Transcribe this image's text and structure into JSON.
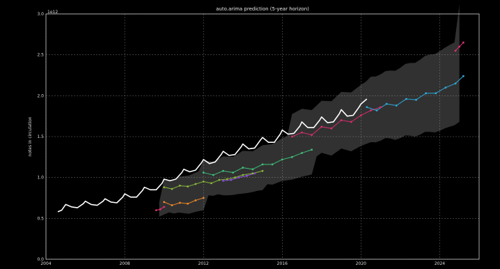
{
  "chart_data": {
    "type": "line",
    "title": "auto.arima prediction (5-year horizon)",
    "xlabel": "",
    "ylabel": "notes in circulation",
    "y_offset_text": "1e12",
    "xlim": [
      2004,
      2026
    ],
    "ylim": [
      0.0,
      3.0
    ],
    "x_ticks": [
      2004,
      2008,
      2012,
      2016,
      2020,
      2024
    ],
    "x_tick_labels": [
      "2004",
      "2008",
      "2012",
      "2016",
      "2020",
      "2024"
    ],
    "y_ticks": [
      0.0,
      0.5,
      1.0,
      1.5,
      2.0,
      2.5,
      3.0
    ],
    "y_tick_labels": [
      "0.0",
      "0.5",
      "1.0",
      "1.5",
      "2.0",
      "2.5",
      "3.0"
    ],
    "grid": true,
    "background": "#000000",
    "series": [
      {
        "role": "observed",
        "color": "#ffffff",
        "x": [
          2004.6,
          2004.8,
          2005.0,
          2005.3,
          2005.6,
          2005.9,
          2006.0,
          2006.3,
          2006.6,
          2006.9,
          2007.0,
          2007.3,
          2007.6,
          2007.9,
          2008.0,
          2008.3,
          2008.6,
          2008.9,
          2009.0,
          2009.3,
          2009.6,
          2009.9,
          2010.0,
          2010.3,
          2010.6,
          2010.9,
          2011.0,
          2011.3,
          2011.6,
          2011.9,
          2012.0,
          2012.3,
          2012.6,
          2012.9,
          2013.0,
          2013.3,
          2013.6,
          2013.9,
          2014.0,
          2014.3,
          2014.6,
          2014.9,
          2015.0,
          2015.3,
          2015.6,
          2015.9,
          2016.0,
          2016.3,
          2016.6,
          2016.9,
          2017.0,
          2017.3,
          2017.6,
          2017.9,
          2018.0,
          2018.3,
          2018.6,
          2018.9,
          2019.0,
          2019.3,
          2019.6,
          2019.9,
          2020.0,
          2020.3
        ],
        "y": [
          0.58,
          0.6,
          0.67,
          0.64,
          0.63,
          0.68,
          0.71,
          0.67,
          0.66,
          0.71,
          0.74,
          0.7,
          0.69,
          0.76,
          0.8,
          0.76,
          0.76,
          0.84,
          0.88,
          0.85,
          0.85,
          0.93,
          0.98,
          0.96,
          0.98,
          1.06,
          1.1,
          1.07,
          1.09,
          1.18,
          1.22,
          1.17,
          1.19,
          1.28,
          1.32,
          1.27,
          1.28,
          1.37,
          1.41,
          1.35,
          1.36,
          1.46,
          1.49,
          1.43,
          1.43,
          1.53,
          1.58,
          1.53,
          1.54,
          1.63,
          1.68,
          1.61,
          1.61,
          1.7,
          1.74,
          1.67,
          1.68,
          1.78,
          1.83,
          1.75,
          1.76,
          1.86,
          1.9,
          1.96
        ]
      },
      {
        "role": "forecast",
        "color": "#8ab83a",
        "x": [
          2010.0,
          2010.4,
          2010.8,
          2011.2,
          2011.6,
          2012.0,
          2012.4,
          2012.8,
          2013.2,
          2013.6,
          2014.0,
          2014.5,
          2015.0
        ],
        "y": [
          0.88,
          0.86,
          0.9,
          0.89,
          0.92,
          0.95,
          0.93,
          0.97,
          0.98,
          1.0,
          1.03,
          1.05,
          1.08
        ]
      },
      {
        "role": "forecast",
        "color": "#f08a2a",
        "x": [
          2010.0,
          2010.4,
          2010.8,
          2011.2,
          2011.6,
          2012.0
        ],
        "y": [
          0.7,
          0.66,
          0.69,
          0.68,
          0.72,
          0.75
        ]
      },
      {
        "role": "forecast",
        "color": "#e0306a",
        "x": [
          2009.6,
          2009.8,
          2010.0
        ],
        "y": [
          0.6,
          0.61,
          0.64
        ]
      },
      {
        "role": "forecast",
        "color": "#3fbf7a",
        "x": [
          2012.0,
          2012.5,
          2013.0,
          2013.5,
          2014.0,
          2014.5,
          2015.0,
          2015.5,
          2016.0,
          2016.5,
          2017.0,
          2017.5
        ],
        "y": [
          1.06,
          1.03,
          1.08,
          1.06,
          1.12,
          1.1,
          1.16,
          1.16,
          1.22,
          1.25,
          1.3,
          1.34
        ]
      },
      {
        "role": "forecast",
        "color": "#8b4fd8",
        "x": [
          2013.0,
          2013.4,
          2013.8,
          2014.2,
          2014.6
        ],
        "y": [
          0.96,
          0.97,
          1.0,
          1.02,
          1.05
        ]
      },
      {
        "role": "forecast",
        "color": "#d92e6e",
        "x": [
          2016.5,
          2017.0,
          2017.5,
          2018.0,
          2018.5,
          2019.0,
          2019.5,
          2020.0,
          2020.5,
          2021.0
        ],
        "y": [
          1.5,
          1.55,
          1.52,
          1.62,
          1.6,
          1.7,
          1.68,
          1.76,
          1.82,
          1.86
        ]
      },
      {
        "role": "forecast",
        "color": "#2fa8d8",
        "x": [
          2020.3,
          2020.8,
          2021.3,
          2021.8,
          2022.3,
          2022.8,
          2023.3,
          2023.8,
          2024.3,
          2024.8,
          2025.2
        ],
        "y": [
          1.86,
          1.82,
          1.9,
          1.88,
          1.96,
          1.95,
          2.03,
          2.03,
          2.1,
          2.15,
          2.24
        ]
      },
      {
        "role": "forecast",
        "color": "#e03070",
        "x": [
          2024.8,
          2025.0,
          2025.2
        ],
        "y": [
          2.55,
          2.6,
          2.65
        ]
      }
    ]
  }
}
